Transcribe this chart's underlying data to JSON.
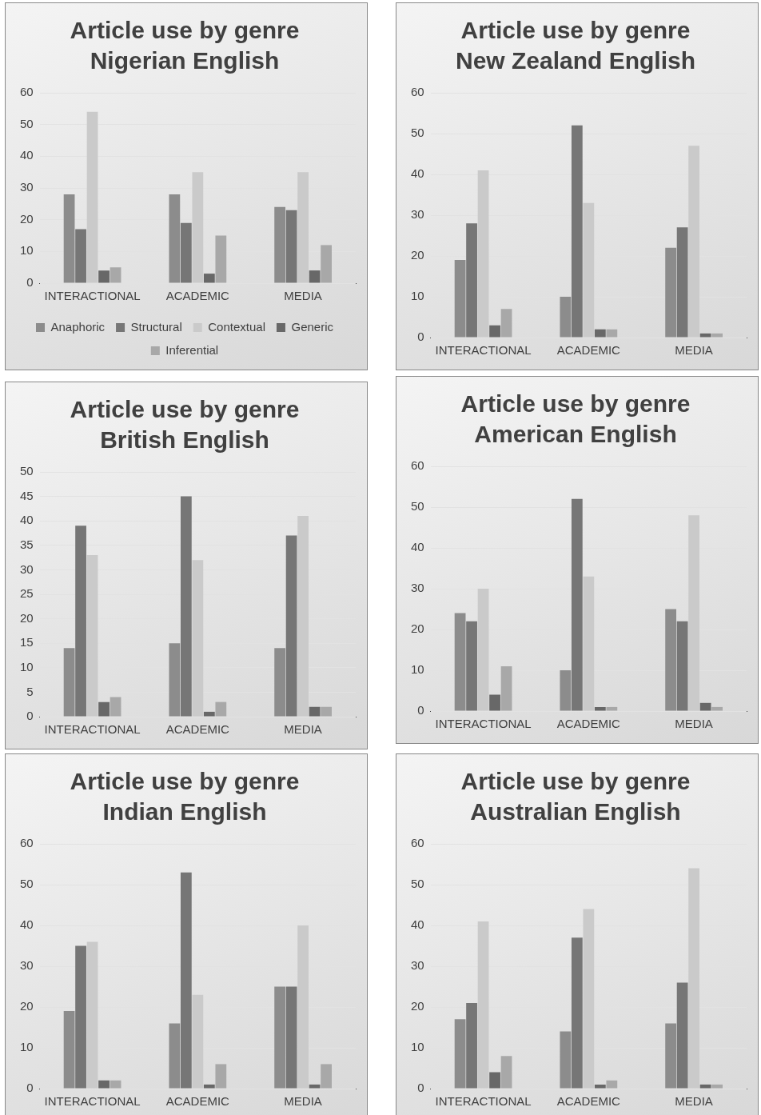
{
  "chart_data": [
    {
      "type": "bar",
      "title": "Article use by genre",
      "subtitle": "Nigerian English",
      "categories": [
        "INTERACTIONAL",
        "ACADEMIC",
        "MEDIA"
      ],
      "ylim": [
        0,
        60
      ],
      "yticks": [
        0,
        10,
        20,
        30,
        40,
        50,
        60
      ],
      "grid": "y",
      "legend": "bottom",
      "series": [
        {
          "name": "Anaphoric",
          "color": "#8c8c8c",
          "values": [
            28,
            28,
            24
          ]
        },
        {
          "name": "Structural",
          "color": "#767676",
          "values": [
            17,
            19,
            23
          ]
        },
        {
          "name": "Contextual",
          "color": "#cacaca",
          "values": [
            54,
            35,
            35
          ]
        },
        {
          "name": "Generic",
          "color": "#686868",
          "values": [
            4,
            3,
            4
          ]
        },
        {
          "name": "Inferential",
          "color": "#a8a8a8",
          "values": [
            5,
            15,
            12
          ]
        }
      ]
    },
    {
      "type": "bar",
      "title": "Article use by genre",
      "subtitle": "New Zealand English",
      "categories": [
        "INTERACTIONAL",
        "ACADEMIC",
        "MEDIA"
      ],
      "ylim": [
        0,
        60
      ],
      "yticks": [
        0,
        10,
        20,
        30,
        40,
        50,
        60
      ],
      "grid": "y",
      "series": [
        {
          "color": "#8c8c8c",
          "values": [
            19,
            10,
            22
          ]
        },
        {
          "color": "#767676",
          "values": [
            28,
            52,
            27
          ]
        },
        {
          "color": "#cacaca",
          "values": [
            41,
            33,
            47
          ]
        },
        {
          "color": "#686868",
          "values": [
            3,
            2,
            1
          ]
        },
        {
          "color": "#a8a8a8",
          "values": [
            7,
            2,
            1
          ]
        }
      ]
    },
    {
      "type": "bar",
      "title": "Article use by genre",
      "subtitle": "British English",
      "categories": [
        "INTERACTIONAL",
        "ACADEMIC",
        "MEDIA"
      ],
      "ylim": [
        0,
        50
      ],
      "yticks": [
        0,
        5,
        10,
        15,
        20,
        25,
        30,
        35,
        40,
        45,
        50
      ],
      "grid": "y",
      "series": [
        {
          "color": "#8c8c8c",
          "values": [
            14,
            15,
            14
          ]
        },
        {
          "color": "#767676",
          "values": [
            39,
            45,
            37
          ]
        },
        {
          "color": "#cacaca",
          "values": [
            33,
            32,
            41
          ]
        },
        {
          "color": "#686868",
          "values": [
            3,
            1,
            2
          ]
        },
        {
          "color": "#a8a8a8",
          "values": [
            4,
            3,
            2
          ]
        }
      ]
    },
    {
      "type": "bar",
      "title": "Article use by genre",
      "subtitle": "American English",
      "categories": [
        "INTERACTIONAL",
        "ACADEMIC",
        "MEDIA"
      ],
      "ylim": [
        0,
        60
      ],
      "yticks": [
        0,
        10,
        20,
        30,
        40,
        50,
        60
      ],
      "grid": "y",
      "series": [
        {
          "color": "#8c8c8c",
          "values": [
            24,
            10,
            25
          ]
        },
        {
          "color": "#767676",
          "values": [
            22,
            52,
            22
          ]
        },
        {
          "color": "#cacaca",
          "values": [
            30,
            33,
            48
          ]
        },
        {
          "color": "#686868",
          "values": [
            4,
            1,
            2
          ]
        },
        {
          "color": "#a8a8a8",
          "values": [
            11,
            1,
            1
          ]
        }
      ]
    },
    {
      "type": "bar",
      "title": "Article use by genre",
      "subtitle": "Indian English",
      "categories": [
        "INTERACTIONAL",
        "ACADEMIC",
        "MEDIA"
      ],
      "ylim": [
        0,
        60
      ],
      "yticks": [
        0,
        10,
        20,
        30,
        40,
        50,
        60
      ],
      "grid": "y",
      "series": [
        {
          "color": "#8c8c8c",
          "values": [
            19,
            16,
            25
          ]
        },
        {
          "color": "#767676",
          "values": [
            35,
            53,
            25
          ]
        },
        {
          "color": "#cacaca",
          "values": [
            36,
            23,
            40
          ]
        },
        {
          "color": "#686868",
          "values": [
            2,
            1,
            1
          ]
        },
        {
          "color": "#a8a8a8",
          "values": [
            2,
            6,
            6
          ]
        }
      ]
    },
    {
      "type": "bar",
      "title": "Article use by genre",
      "subtitle": "Australian English",
      "categories": [
        "INTERACTIONAL",
        "ACADEMIC",
        "MEDIA"
      ],
      "ylim": [
        0,
        60
      ],
      "yticks": [
        0,
        10,
        20,
        30,
        40,
        50,
        60
      ],
      "grid": "y",
      "series": [
        {
          "color": "#8c8c8c",
          "values": [
            17,
            14,
            16
          ]
        },
        {
          "color": "#767676",
          "values": [
            21,
            37,
            26
          ]
        },
        {
          "color": "#cacaca",
          "values": [
            41,
            44,
            54
          ]
        },
        {
          "color": "#686868",
          "values": [
            4,
            1,
            1
          ]
        },
        {
          "color": "#a8a8a8",
          "values": [
            8,
            2,
            1
          ]
        }
      ]
    }
  ]
}
